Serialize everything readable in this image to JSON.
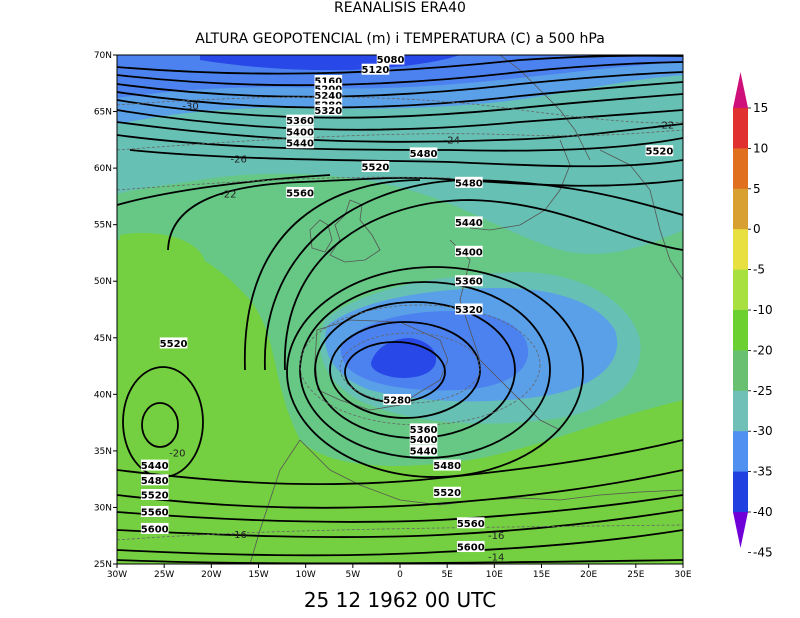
{
  "title": "REANALISIS ERA40",
  "subtitle": "ALTURA GEOPOTENCIAL (m) i TEMPERATURA (C) a 500 hPa",
  "timestamp": "25 12 1962 00 UTC",
  "map": {
    "lon_range": [
      -30,
      30
    ],
    "lat_range": [
      25,
      70
    ],
    "lon_ticks": [
      "30W",
      "25W",
      "20W",
      "15W",
      "10W",
      "5W",
      "0",
      "5E",
      "10E",
      "15E",
      "20E",
      "25E",
      "30E"
    ],
    "lat_ticks": [
      "70N",
      "65N",
      "60N",
      "55N",
      "50N",
      "45N",
      "40N",
      "35N",
      "30N",
      "25N"
    ]
  },
  "colorbar": {
    "labels": [
      "15",
      "10",
      "5",
      "0",
      "-5",
      "-10",
      "-20",
      "-25",
      "-30",
      "-35",
      "-40",
      "-45"
    ],
    "colors": [
      "#d0107a",
      "#e03030",
      "#e07020",
      "#d8a030",
      "#e8e040",
      "#a8e040",
      "#6cd030",
      "#68c070",
      "#70c0b8",
      "#5090f0",
      "#2040e0",
      "#7000d8"
    ]
  },
  "temperature_field": {
    "levels_c": [
      -45,
      -40,
      -35,
      -30,
      -25,
      -20,
      -10
    ],
    "fill_colors": {
      "-40": "#2848e8",
      "-35": "#4c82f0",
      "-30": "#5aa0e8",
      "-25": "#66c0b4",
      "-20": "#66c884",
      "-10": "#74d040"
    }
  },
  "contour_labels": {
    "geopotential": [
      {
        "text": "5080",
        "lon": -1,
        "lat": 69.6
      },
      {
        "text": "5120",
        "lon": -2.6,
        "lat": 68.7
      },
      {
        "text": "5160",
        "lon": -7.6,
        "lat": 67.7
      },
      {
        "text": "5200",
        "lon": -7.6,
        "lat": 67.0
      },
      {
        "text": "5240",
        "lon": -7.6,
        "lat": 66.4
      },
      {
        "text": "5280",
        "lon": -7.6,
        "lat": 65.6
      },
      {
        "text": "5320",
        "lon": -7.6,
        "lat": 65.1
      },
      {
        "text": "5360",
        "lon": -10.6,
        "lat": 64.2
      },
      {
        "text": "5400",
        "lon": -10.6,
        "lat": 63.2
      },
      {
        "text": "5440",
        "lon": -10.6,
        "lat": 62.2
      },
      {
        "text": "5480",
        "lon": 2.5,
        "lat": 61.3
      },
      {
        "text": "5520",
        "lon": -2.6,
        "lat": 60.1
      },
      {
        "text": "5520",
        "lon": 27.5,
        "lat": 61.5
      },
      {
        "text": "5480",
        "lon": 7.3,
        "lat": 58.7
      },
      {
        "text": "5560",
        "lon": -10.6,
        "lat": 57.8
      },
      {
        "text": "5440",
        "lon": 7.3,
        "lat": 55.2
      },
      {
        "text": "5400",
        "lon": 7.3,
        "lat": 52.6
      },
      {
        "text": "5360",
        "lon": 7.3,
        "lat": 50.0
      },
      {
        "text": "5320",
        "lon": 7.3,
        "lat": 47.5
      },
      {
        "text": "5520",
        "lon": -24.0,
        "lat": 44.5
      },
      {
        "text": "5280",
        "lon": -0.3,
        "lat": 39.5
      },
      {
        "text": "5360",
        "lon": 2.5,
        "lat": 36.9
      },
      {
        "text": "5400",
        "lon": 2.5,
        "lat": 36.0
      },
      {
        "text": "5440",
        "lon": 2.5,
        "lat": 35.0
      },
      {
        "text": "5480",
        "lon": 5.0,
        "lat": 33.7
      },
      {
        "text": "5440",
        "lon": -26.0,
        "lat": 33.7
      },
      {
        "text": "5480",
        "lon": -26.0,
        "lat": 32.4
      },
      {
        "text": "5520",
        "lon": -26.0,
        "lat": 31.1
      },
      {
        "text": "5520",
        "lon": 5.0,
        "lat": 31.3
      },
      {
        "text": "5560",
        "lon": -26.0,
        "lat": 29.6
      },
      {
        "text": "5560",
        "lon": 7.5,
        "lat": 28.6
      },
      {
        "text": "5600",
        "lon": -26.0,
        "lat": 28.1
      },
      {
        "text": "5600",
        "lon": 7.5,
        "lat": 26.5
      }
    ],
    "temperature": [
      {
        "text": "-30",
        "lon": -22.2,
        "lat": 65.5
      },
      {
        "text": "-26",
        "lon": -17.1,
        "lat": 60.8
      },
      {
        "text": "-24",
        "lon": 5.5,
        "lat": 62.5
      },
      {
        "text": "-22",
        "lon": 28.2,
        "lat": 63.8
      },
      {
        "text": "-22",
        "lon": -18.2,
        "lat": 57.7
      },
      {
        "text": "-20",
        "lon": -23.6,
        "lat": 34.8
      },
      {
        "text": "-16",
        "lon": -17.1,
        "lat": 27.6
      },
      {
        "text": "-16",
        "lon": 10.2,
        "lat": 27.5
      },
      {
        "text": "-14",
        "lon": 10.2,
        "lat": 25.6
      }
    ]
  }
}
